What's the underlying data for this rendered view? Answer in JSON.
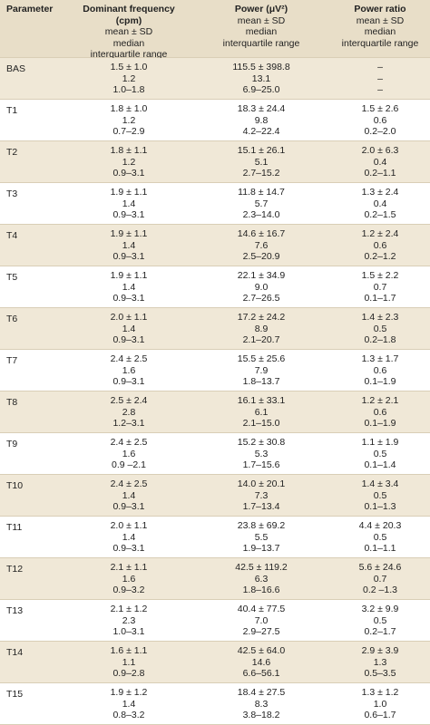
{
  "table": {
    "columns": [
      {
        "title": "Parameter"
      },
      {
        "title": "Dominant frequency (cpm)",
        "lines": [
          "mean ± SD",
          "median",
          "interquartile range"
        ]
      },
      {
        "title": "Power (μV²)",
        "lines": [
          "mean ± SD",
          "median",
          "interquartile range"
        ]
      },
      {
        "title": "Power ratio",
        "lines": [
          "mean ± SD",
          "median",
          "interquartile range"
        ]
      }
    ],
    "rows": [
      {
        "label": "BAS",
        "cells": [
          [
            "1.5 ± 1.0",
            "1.2",
            "1.0–1.8"
          ],
          [
            "115.5 ± 398.8",
            "13.1",
            "6.9–25.0"
          ],
          [
            "–",
            "–",
            "–"
          ]
        ]
      },
      {
        "label": "T1",
        "cells": [
          [
            "1.8 ± 1.0",
            "1.2",
            "0.7–2.9"
          ],
          [
            "18.3 ± 24.4",
            "9.8",
            "4.2–22.4"
          ],
          [
            "1.5 ± 2.6",
            "0.6",
            "0.2–2.0"
          ]
        ]
      },
      {
        "label": "T2",
        "cells": [
          [
            "1.8 ± 1.1",
            "1.2",
            "0.9–3.1"
          ],
          [
            "15.1 ± 26.1",
            "5.1",
            "2.7–15.2"
          ],
          [
            "2.0 ± 6.3",
            "0.4",
            "0.2–1.1"
          ]
        ]
      },
      {
        "label": "T3",
        "cells": [
          [
            "1.9 ± 1.1",
            "1.4",
            "0.9–3.1"
          ],
          [
            "11.8 ± 14.7",
            "5.7",
            "2.3–14.0"
          ],
          [
            "1.3 ± 2.4",
            "0.4",
            "0.2–1.5"
          ]
        ]
      },
      {
        "label": "T4",
        "cells": [
          [
            "1.9 ± 1.1",
            "1.4",
            "0.9–3.1"
          ],
          [
            "14.6 ± 16.7",
            "7.6",
            "2.5–20.9"
          ],
          [
            "1.2 ± 2.4",
            "0.6",
            "0.2–1.2"
          ]
        ]
      },
      {
        "label": "T5",
        "cells": [
          [
            "1.9 ± 1.1",
            "1.4",
            "0.9–3.1"
          ],
          [
            "22.1 ± 34.9",
            "9.0",
            "2.7–26.5"
          ],
          [
            "1.5 ± 2.2",
            "0.7",
            "0.1–1.7"
          ]
        ]
      },
      {
        "label": "T6",
        "cells": [
          [
            "2.0 ± 1.1",
            "1.4",
            "0.9–3.1"
          ],
          [
            "17.2 ± 24.2",
            "8.9",
            "2.1–20.7"
          ],
          [
            "1.4 ± 2.3",
            "0.5",
            "0.2–1.8"
          ]
        ]
      },
      {
        "label": "T7",
        "cells": [
          [
            "2.4 ± 2.5",
            "1.6",
            "0.9–3.1"
          ],
          [
            "15.5 ± 25.6",
            "7.9",
            "1.8–13.7"
          ],
          [
            "1.3 ± 1.7",
            "0.6",
            "0.1–1.9"
          ]
        ]
      },
      {
        "label": "T8",
        "cells": [
          [
            "2.5 ± 2.4",
            "2.8",
            "1.2–3.1"
          ],
          [
            "16.1 ± 33.1",
            "6.1",
            "2.1–15.0"
          ],
          [
            "1.2 ± 2.1",
            "0.6",
            "0.1–1.9"
          ]
        ]
      },
      {
        "label": "T9",
        "cells": [
          [
            "2.4 ± 2.5",
            "1.6",
            "0.9 –2.1"
          ],
          [
            "15.2 ± 30.8",
            "5.3",
            "1.7–15.6"
          ],
          [
            "1.1 ± 1.9",
            "0.5",
            "0.1–1.4"
          ]
        ]
      },
      {
        "label": "T10",
        "cells": [
          [
            "2.4 ± 2.5",
            "1.4",
            "0.9–3.1"
          ],
          [
            "14.0 ± 20.1",
            "7.3",
            "1.7–13.4"
          ],
          [
            "1.4 ± 3.4",
            "0.5",
            "0.1–1.3"
          ]
        ]
      },
      {
        "label": "T11",
        "cells": [
          [
            "2.0 ± 1.1",
            "1.4",
            "0.9–3.1"
          ],
          [
            "23.8 ± 69.2",
            "5.5",
            "1.9–13.7"
          ],
          [
            "4.4 ± 20.3",
            "0.5",
            "0.1–1.1"
          ]
        ]
      },
      {
        "label": "T12",
        "cells": [
          [
            "2.1 ± 1.1",
            "1.6",
            "0.9–3.2"
          ],
          [
            "42.5 ± 119.2",
            "6.3",
            "1.8–16.6"
          ],
          [
            "5.6 ± 24.6",
            "0.7",
            "0.2 –1.3"
          ]
        ]
      },
      {
        "label": "T13",
        "cells": [
          [
            "2.1 ± 1.2",
            "2.3",
            "1.0–3.1"
          ],
          [
            "40.4 ± 77.5",
            "7.0",
            "2.9–27.5"
          ],
          [
            "3.2 ± 9.9",
            "0.5",
            "0.2–1.7"
          ]
        ]
      },
      {
        "label": "T14",
        "cells": [
          [
            "1.6 ± 1.1",
            "1.1",
            "0.9–2.8"
          ],
          [
            "42.5 ± 64.0",
            "14.6",
            "6.6–56.1"
          ],
          [
            "2.9 ± 3.9",
            "1.3",
            "0.5–3.5"
          ]
        ]
      },
      {
        "label": "T15",
        "cells": [
          [
            "1.9 ± 1.2",
            "1.4",
            "0.8–3.2"
          ],
          [
            "18.4 ± 27.5",
            "8.3",
            "3.8–18.2"
          ],
          [
            "1.3 ± 1.2",
            "1.0",
            "0.6–1.7"
          ]
        ]
      }
    ]
  }
}
